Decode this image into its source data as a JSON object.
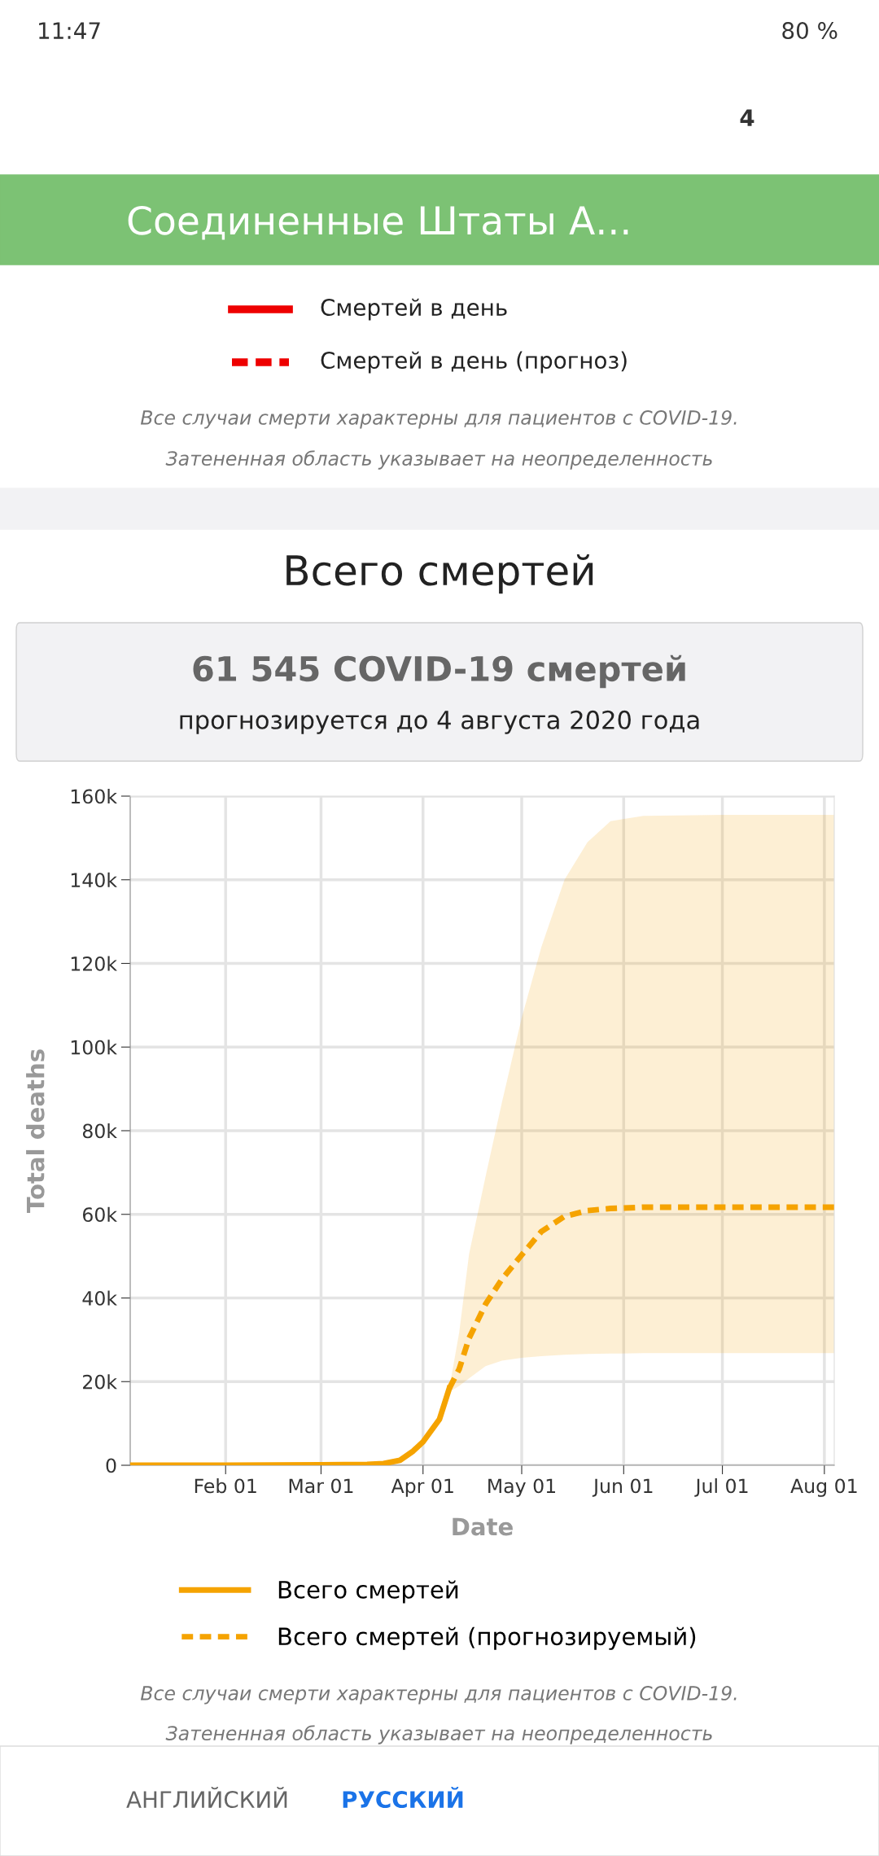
{
  "chart_data": {
    "type": "line",
    "title": "Всего смертей",
    "subtitle": "61 545 COVID-19 смертей",
    "xlabel": "Date",
    "ylabel": "Total deaths",
    "xlim": [
      "2020-01-03",
      "2020-08-04"
    ],
    "ylim": [
      0,
      160000
    ],
    "xticks": [
      {
        "value": "2020-02-01",
        "label": "Feb 01"
      },
      {
        "value": "2020-03-01",
        "label": "Mar 01"
      },
      {
        "value": "2020-04-01",
        "label": "Apr 01"
      },
      {
        "value": "2020-05-01",
        "label": "May 01"
      },
      {
        "value": "2020-06-01",
        "label": "Jun 01"
      },
      {
        "value": "2020-07-01",
        "label": "Jul 01"
      },
      {
        "value": "2020-08-01",
        "label": "Aug 01"
      }
    ],
    "yticks": [
      0,
      {
        "value": 20000,
        "label": "20k"
      },
      {
        "value": 40000,
        "label": "40k"
      },
      {
        "value": 60000,
        "label": "60k"
      },
      {
        "value": 80000,
        "label": "80k"
      },
      {
        "value": 100000,
        "label": "100k"
      },
      {
        "value": 120000,
        "label": "120k"
      },
      {
        "value": 140000,
        "label": "140k"
      },
      {
        "value": 160000,
        "label": "160k"
      }
    ],
    "grid": true,
    "legend": "bottom",
    "series": [
      {
        "name": "Всего смертей",
        "color": "#f5a300",
        "line_style": "solid",
        "x": [
          "2020-01-03",
          "2020-02-01",
          "2020-03-01",
          "2020-03-15",
          "2020-03-20",
          "2020-03-25",
          "2020-03-29",
          "2020-04-01",
          "2020-04-06",
          "2020-04-09"
        ],
        "values": [
          0,
          0,
          100,
          200,
          400,
          1200,
          3400,
          5600,
          11000,
          18400
        ]
      },
      {
        "name": "Всего смертей (прогнозируемый)",
        "color": "#f5a300",
        "line_style": "dashed",
        "x": [
          "2020-04-09",
          "2020-04-12",
          "2020-04-15",
          "2020-04-20",
          "2020-04-25",
          "2020-05-01",
          "2020-05-07",
          "2020-05-14",
          "2020-05-21",
          "2020-05-28",
          "2020-06-07",
          "2020-07-01",
          "2020-08-04"
        ],
        "values": [
          18400,
          23000,
          30400,
          38500,
          44500,
          50300,
          55900,
          59500,
          60900,
          61400,
          61700,
          61700,
          61700
        ],
        "lower": [
          17500,
          19000,
          20800,
          23700,
          25000,
          25700,
          26100,
          26400,
          26600,
          26700,
          26800,
          26800,
          26800
        ],
        "upper": [
          18400,
          31800,
          50500,
          69000,
          86800,
          107000,
          124000,
          140000,
          149000,
          154000,
          155300,
          155500,
          155500
        ]
      }
    ],
    "annotations": [
      "11:47",
      "80 %",
      "4",
      "Соединенные Штаты А...",
      "Смертей в день",
      "Смертей в день (прогноз)",
      "Все случаи смерти характерны для пациентов с COVID-19.",
      "Затененная область указывает на неопределенность",
      "прогнозируется до 4 августа 2020 года",
      "Все случаи смерти характерны для пациентов с COVID-19.",
      "Затененная область указывает на неопределенность",
      "АНГЛИЙСКИЙ",
      "РУССКИЙ"
    ]
  }
}
